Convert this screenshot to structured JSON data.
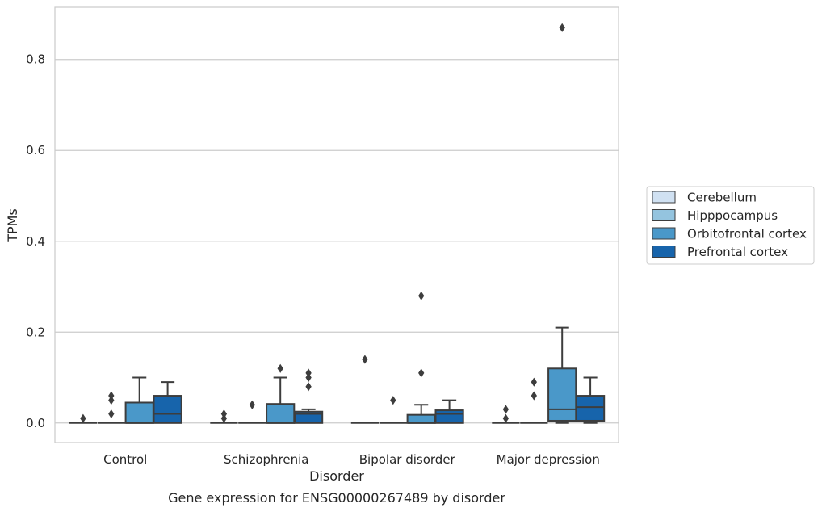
{
  "chart_data": {
    "type": "box",
    "title": "Gene expression for ENSG00000267489 by disorder",
    "xlabel": "Disorder",
    "ylabel": "TPMs",
    "ylim": [
      -0.043,
      0.915
    ],
    "yticks": [
      0.0,
      0.2,
      0.4,
      0.6,
      0.8
    ],
    "ytick_labels": [
      "0.0",
      "0.2",
      "0.4",
      "0.6",
      "0.8"
    ],
    "grid": "horizontal",
    "legend_position": "right",
    "categories": [
      "Control",
      "Schizophrenia",
      "Bipolar disorder",
      "Major depression"
    ],
    "series": [
      {
        "name": "Cerebellum",
        "color": "#d0e1f2",
        "boxes": [
          {
            "q1": 0,
            "median": 0,
            "q3": 0,
            "whislo": 0,
            "whishi": 0,
            "fliers": [
              0.01
            ]
          },
          {
            "q1": 0,
            "median": 0,
            "q3": 0,
            "whislo": 0,
            "whishi": 0,
            "fliers": [
              0.01,
              0.02
            ]
          },
          {
            "q1": 0,
            "median": 0,
            "q3": 0,
            "whislo": 0,
            "whishi": 0,
            "fliers": [
              0.14
            ]
          },
          {
            "q1": 0,
            "median": 0,
            "q3": 0,
            "whislo": 0,
            "whishi": 0,
            "fliers": [
              0.01,
              0.03
            ]
          }
        ]
      },
      {
        "name": "Hipppocampus",
        "color": "#94c4df",
        "boxes": [
          {
            "q1": 0,
            "median": 0,
            "q3": 0,
            "whislo": 0,
            "whishi": 0,
            "fliers": [
              0.02,
              0.05,
              0.06
            ]
          },
          {
            "q1": 0,
            "median": 0,
            "q3": 0,
            "whislo": 0,
            "whishi": 0,
            "fliers": [
              0.04
            ]
          },
          {
            "q1": 0,
            "median": 0,
            "q3": 0,
            "whislo": 0,
            "whishi": 0,
            "fliers": [
              0.05
            ]
          },
          {
            "q1": 0,
            "median": 0,
            "q3": 0,
            "whislo": 0,
            "whishi": 0,
            "fliers": [
              0.06,
              0.09
            ]
          }
        ]
      },
      {
        "name": "Orbitofrontal cortex",
        "color": "#4a98c9",
        "boxes": [
          {
            "q1": 0,
            "median": 0,
            "q3": 0.045,
            "whislo": 0,
            "whishi": 0.1,
            "fliers": []
          },
          {
            "q1": 0,
            "median": 0,
            "q3": 0.042,
            "whislo": 0,
            "whishi": 0.1,
            "fliers": [
              0.12
            ]
          },
          {
            "q1": 0,
            "median": 0,
            "q3": 0.018,
            "whislo": 0,
            "whishi": 0.04,
            "fliers": [
              0.11,
              0.28
            ]
          },
          {
            "q1": 0.005,
            "median": 0.03,
            "q3": 0.12,
            "whislo": 0,
            "whishi": 0.21,
            "fliers": [
              0.87
            ]
          }
        ]
      },
      {
        "name": "Prefrontal cortex",
        "color": "#1764ab",
        "boxes": [
          {
            "q1": 0,
            "median": 0.02,
            "q3": 0.06,
            "whislo": 0,
            "whishi": 0.09,
            "fliers": []
          },
          {
            "q1": 0,
            "median": 0.02,
            "q3": 0.025,
            "whislo": 0,
            "whishi": 0.03,
            "fliers": [
              0.08,
              0.1,
              0.11
            ]
          },
          {
            "q1": 0,
            "median": 0.02,
            "q3": 0.028,
            "whislo": 0,
            "whishi": 0.05,
            "fliers": []
          },
          {
            "q1": 0.005,
            "median": 0.035,
            "q3": 0.06,
            "whislo": 0,
            "whishi": 0.1,
            "fliers": []
          }
        ]
      }
    ]
  }
}
